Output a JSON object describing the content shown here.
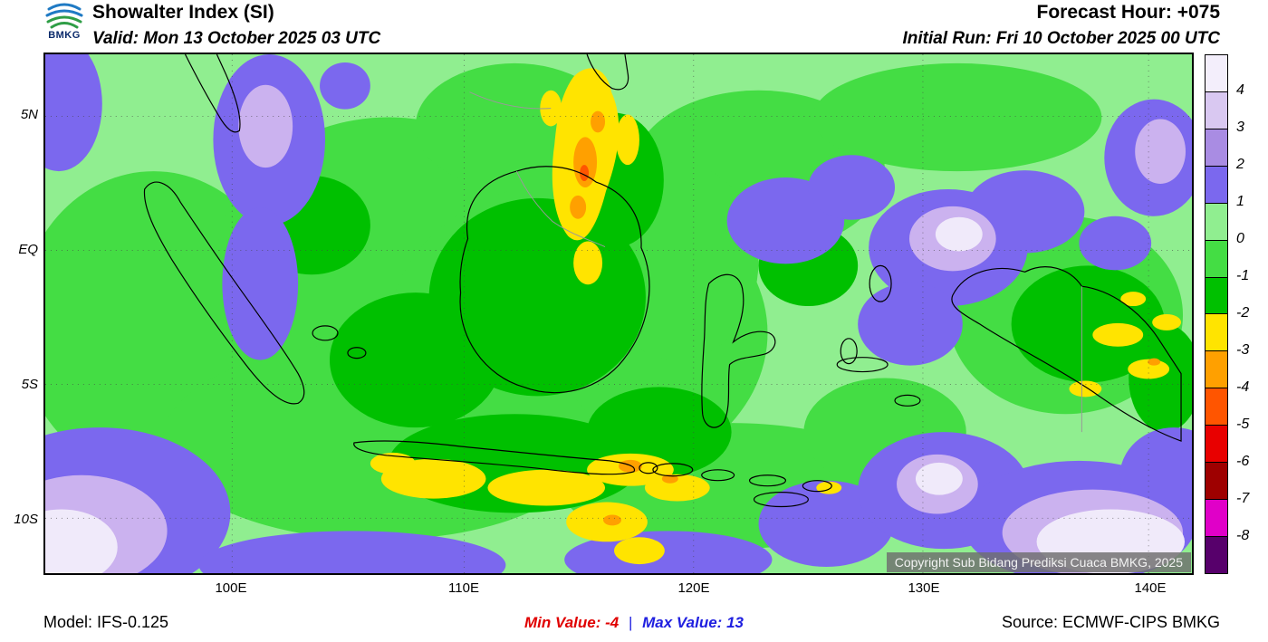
{
  "header": {
    "logo_text": "BMKG",
    "title": "Showalter Index (SI)",
    "valid": "Valid: Mon 13 October 2025 03 UTC",
    "forecast_hour": "Forecast Hour: +075",
    "initial_run": "Initial Run: Fri 10 October 2025 00 UTC"
  },
  "map": {
    "copyright": "Copyright Sub Bidang Prediksi Cuaca BMKG, 2025",
    "lat_labels": [
      "5N",
      "EQ",
      "5S",
      "10S"
    ],
    "lon_labels": [
      "100E",
      "110E",
      "120E",
      "130E",
      "140E"
    ]
  },
  "colorbar": {
    "ticks": [
      "4",
      "3",
      "2",
      "1",
      "0",
      "-1",
      "-2",
      "-3",
      "-4",
      "-5",
      "-6",
      "-7",
      "-8"
    ],
    "colors": [
      "#F3EEFB",
      "#D9C8F1",
      "#A98CE3",
      "#7B68EE",
      "#90EE90",
      "#44DD44",
      "#00C000",
      "#FFE400",
      "#FFA000",
      "#FF5500",
      "#E80000",
      "#9E0000",
      "#E000C8",
      "#57006B"
    ]
  },
  "footer": {
    "model": "Model: IFS-0.125",
    "min_label": "Min Value:",
    "min_value": "-4",
    "separator": "|",
    "max_label": "Max Value:",
    "max_value": "13",
    "source": "Source: ECMWF-CIPS BMKG"
  }
}
